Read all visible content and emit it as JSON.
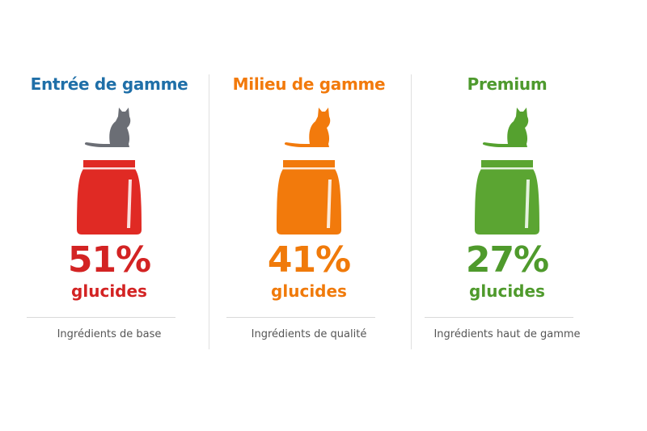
{
  "metric_label": "glucides",
  "tiers": [
    {
      "title": "Entrée de gamme",
      "percent": "51%",
      "note": "Ingrédients de base",
      "title_color": "#1f6fa8",
      "cat_color": "#6b6e75",
      "bag_color": "#e02a24",
      "value_color": "#d32323",
      "cat_icon": "sitting-cat-icon",
      "bag_icon": "food-bag-icon"
    },
    {
      "title": "Milieu de gamme",
      "percent": "41%",
      "note": "Ingrédients de qualité",
      "title_color": "#f27a0c",
      "cat_color": "#f27a0c",
      "bag_color": "#f27a0c",
      "value_color": "#f07a0a",
      "cat_icon": "sitting-cat-icon",
      "bag_icon": "food-bag-icon"
    },
    {
      "title": "Premium",
      "percent": "27%",
      "note": "Ingrédients haut de gamme",
      "title_color": "#4e9a2e",
      "cat_color": "#55a12f",
      "bag_color": "#5ba532",
      "value_color": "#4f9a2c",
      "cat_icon": "sitting-cat-icon",
      "bag_icon": "food-bag-icon"
    }
  ]
}
